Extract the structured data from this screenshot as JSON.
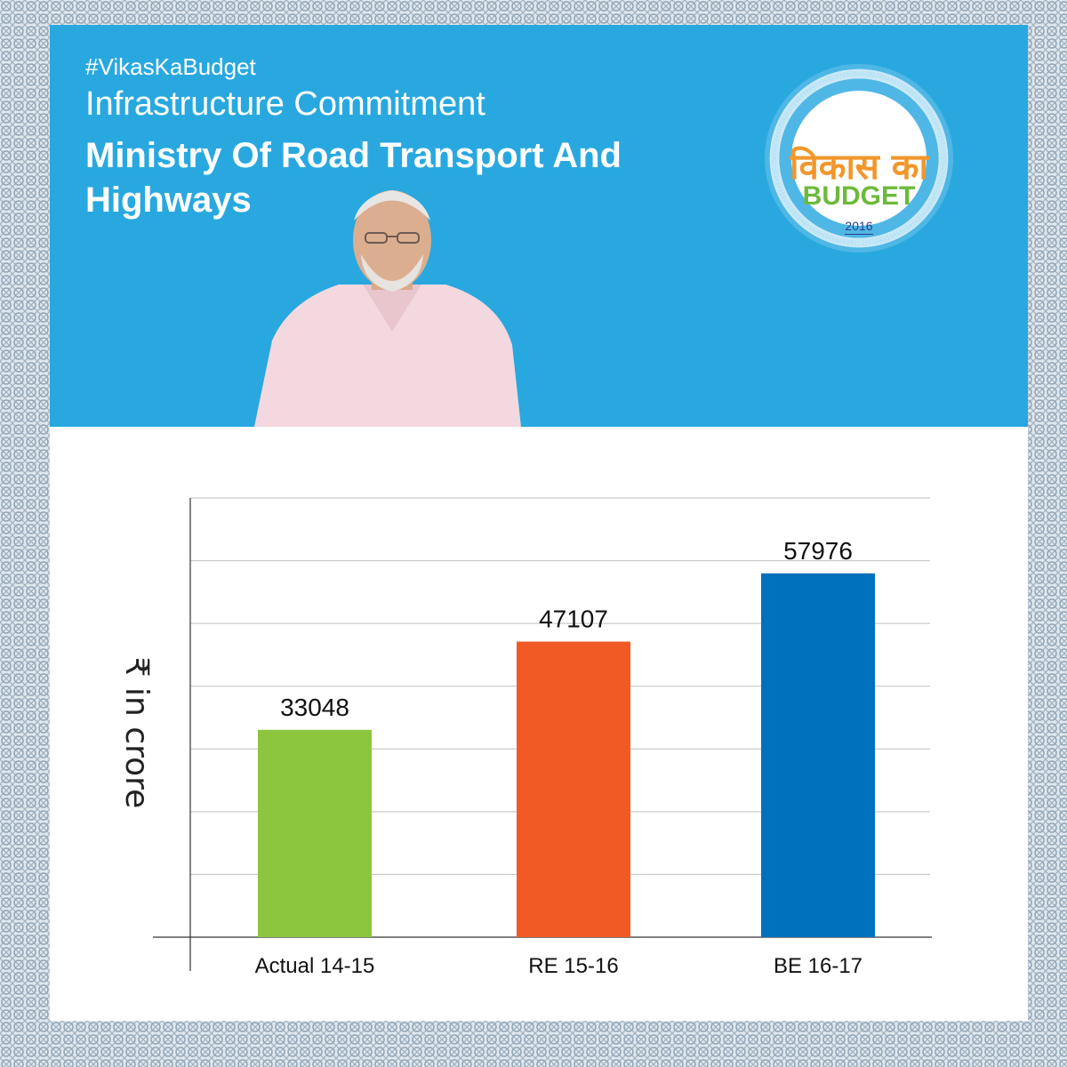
{
  "header": {
    "hashtag": "#VikasKaBudget",
    "heading": "Infrastructure Commitment",
    "ministry": "Ministry Of Road Transport And Highways"
  },
  "logo": {
    "hindi": "विकास का",
    "budget": "BUDGET",
    "year": "2016"
  },
  "colors": {
    "header_bg": "#29a8e0",
    "bar_actual": "#8cc63f",
    "bar_re": "#f15a24",
    "bar_be": "#0071bc"
  },
  "chart_data": {
    "type": "bar",
    "categories": [
      "Actual 14-15",
      "RE 15-16",
      "BE 16-17"
    ],
    "values": [
      33048,
      47107,
      57976
    ],
    "data_labels": [
      "33048",
      "47107",
      "57976"
    ],
    "bar_colors": [
      "#8cc63f",
      "#f15a24",
      "#0071bc"
    ],
    "ylabel": "₹ in crore",
    "ylim": [
      0,
      70000
    ],
    "grid": true,
    "legend": "none"
  }
}
